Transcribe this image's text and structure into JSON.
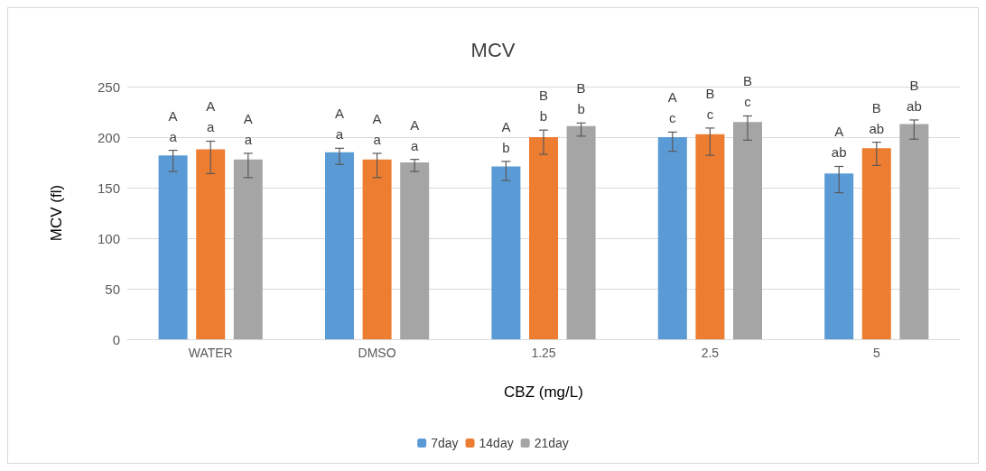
{
  "chart_data": {
    "type": "bar",
    "title": "MCV",
    "xlabel": "CBZ (mg/L)",
    "ylabel": "MCV (fl)",
    "categories": [
      "WATER",
      "DMSO",
      "1.25",
      "2.5",
      "5"
    ],
    "series": [
      {
        "name": "7day",
        "color": "#5b9bd5",
        "values": [
          182,
          185,
          171,
          200,
          164
        ],
        "errors": [
          [
            166,
            187
          ],
          [
            173,
            189
          ],
          [
            157,
            176
          ],
          [
            186,
            205
          ],
          [
            145,
            171
          ]
        ],
        "value_labels": [
          "A\na",
          "A\na",
          "A\nb",
          "A\nc",
          "A\nab"
        ]
      },
      {
        "name": "14day",
        "color": "#ed7d31",
        "values": [
          188,
          178,
          200,
          203,
          189
        ],
        "errors": [
          [
            164,
            196
          ],
          [
            160,
            184
          ],
          [
            183,
            207
          ],
          [
            182,
            209
          ],
          [
            172,
            195
          ]
        ],
        "value_labels": [
          "A\na",
          "A\na",
          "B\nb",
          "B\nc",
          "B\nab"
        ]
      },
      {
        "name": "21day",
        "color": "#a5a5a5",
        "values": [
          178,
          175,
          211,
          215,
          213
        ],
        "errors": [
          [
            160,
            184
          ],
          [
            166,
            178
          ],
          [
            201,
            214
          ],
          [
            197,
            221
          ],
          [
            198,
            217
          ]
        ],
        "value_labels": [
          "A\na",
          "A\na",
          "B\nb",
          "B\nc",
          "B\nab"
        ]
      }
    ],
    "ylim": [
      0,
      250
    ],
    "yticks": [
      0,
      50,
      100,
      150,
      200,
      250
    ],
    "grid": "y",
    "legend": "bottom"
  }
}
